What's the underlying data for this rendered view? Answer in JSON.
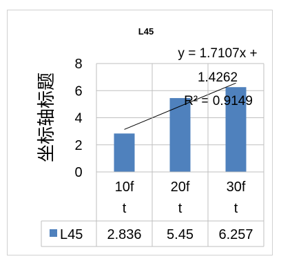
{
  "chart_data": {
    "type": "bar",
    "title": "L45",
    "ylabel": "坐标轴标题",
    "ylim": [
      0,
      8
    ],
    "yticks": [
      "0",
      "2",
      "4",
      "6",
      "8"
    ],
    "categories": [
      [
        "10f",
        "t"
      ],
      [
        "20f",
        "t"
      ],
      [
        "30f",
        "t"
      ]
    ],
    "series": [
      {
        "name": "L45",
        "values": [
          2.836,
          5.45,
          6.257
        ],
        "labels": [
          "2.836",
          "5.45",
          "6.257"
        ],
        "color": "#4f81bd"
      }
    ],
    "trendline": {
      "slope": 1.7107,
      "intercept": 1.4262,
      "equation_lines": [
        "y = 1.7107x +",
        "1.4262"
      ],
      "r2_label": "R² = 0.9149"
    },
    "grid": true,
    "legend": "data-table"
  }
}
